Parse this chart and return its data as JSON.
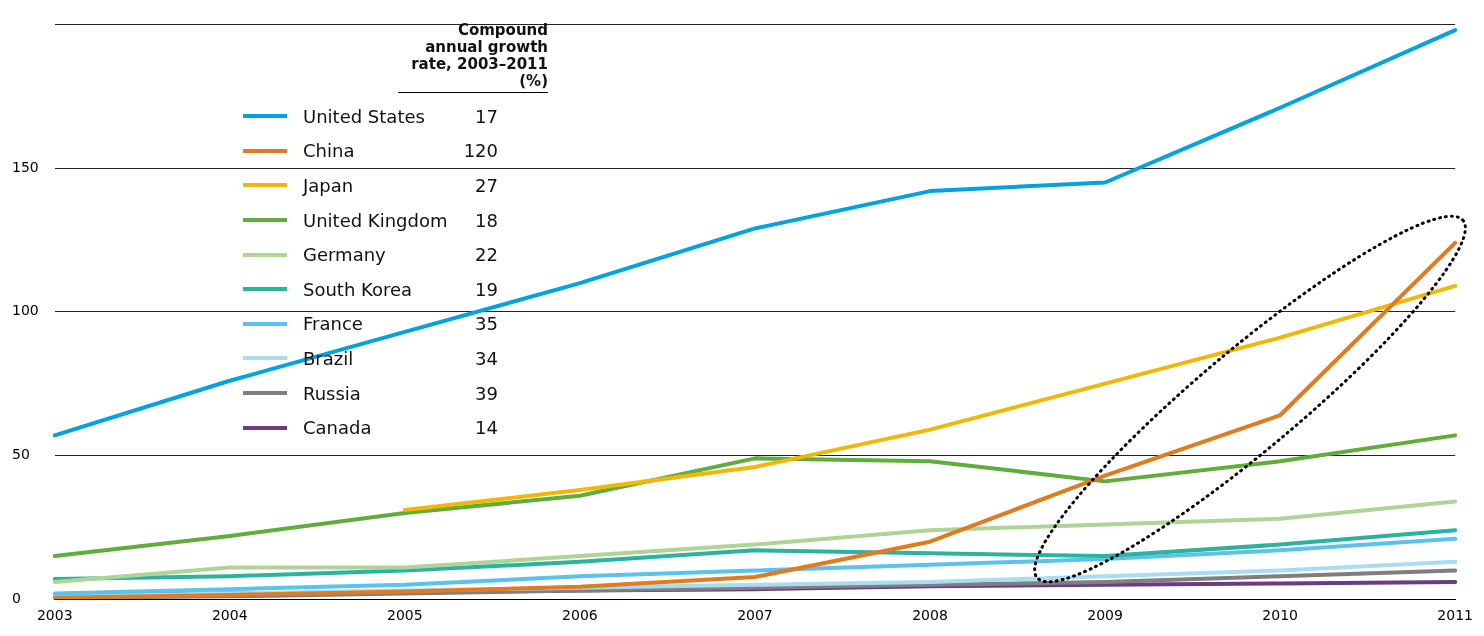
{
  "chart_data": {
    "type": "line",
    "legend_title": "Compound annual growth rate, 2003–2011 (%)",
    "categories": [
      "2003",
      "2004",
      "2005",
      "2006",
      "2007",
      "2008",
      "2009",
      "2010",
      "2011"
    ],
    "series": [
      {
        "name": "United States",
        "color": "#00a3e0",
        "values": [
          57,
          76,
          93,
          110,
          129,
          142,
          145,
          171,
          198
        ]
      },
      {
        "name": "China",
        "color": "#e07b1f",
        "values": [
          0.5,
          1.5,
          2.7,
          4.3,
          7.7,
          20,
          43,
          64,
          124
        ]
      },
      {
        "name": "Japan",
        "color": "#f2b705",
        "values": [
          null,
          null,
          31,
          38,
          46,
          59,
          75,
          91,
          109
        ]
      },
      {
        "name": "United Kingdom",
        "color": "#5fae3b",
        "values": [
          15,
          22,
          30,
          36,
          49,
          48,
          41,
          48,
          57
        ]
      },
      {
        "name": "Germany",
        "color": "#b0d396",
        "values": [
          6,
          11,
          11,
          15,
          19,
          24,
          26,
          28,
          34
        ]
      },
      {
        "name": "South Korea",
        "color": "#2bb3a0",
        "values": [
          7,
          8,
          10,
          13,
          17,
          16,
          15,
          19,
          24
        ]
      },
      {
        "name": "France",
        "color": "#5bc2ee",
        "values": [
          2,
          3.5,
          5,
          8,
          10,
          12,
          14,
          17,
          21
        ]
      },
      {
        "name": "Brazil",
        "color": "#a8dcf2",
        "values": [
          1,
          2,
          3,
          4,
          5,
          6,
          8,
          10,
          13
        ]
      },
      {
        "name": "Russia",
        "color": "#7f7f7f",
        "values": [
          0.5,
          1,
          2,
          3,
          4,
          5,
          6,
          8,
          10
        ]
      },
      {
        "name": "Canada",
        "color": "#6b3b86",
        "values": [
          1.5,
          2,
          2.5,
          3,
          3.5,
          4.5,
          5,
          5.5,
          6
        ]
      }
    ],
    "annotations": [
      "17",
      "120",
      "27",
      "18",
      "22",
      "19",
      "35",
      "34",
      "39",
      "14"
    ],
    "ylim": [
      0,
      200
    ],
    "yticks": [
      0,
      50,
      100,
      150,
      {
        "value": 200,
        "label": null
      }
    ],
    "grid": "y",
    "legend": "top left",
    "marker": "none",
    "line_style": "solid"
  }
}
